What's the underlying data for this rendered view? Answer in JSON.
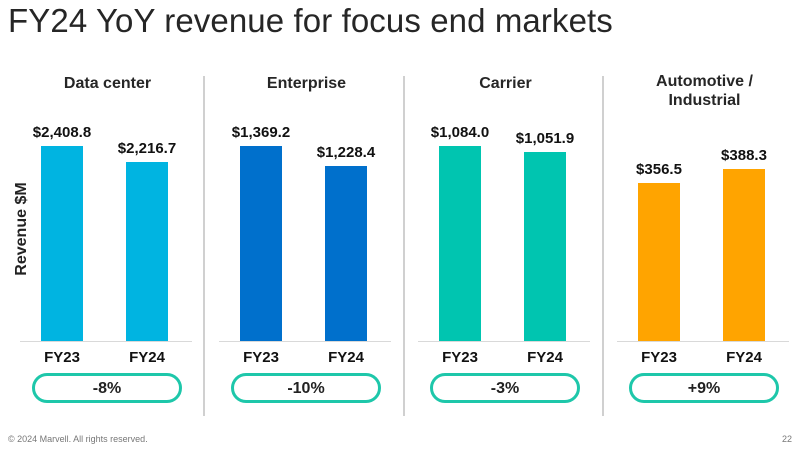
{
  "slide": {
    "title": "FY24 YoY revenue for focus end markets",
    "y_axis_label": "Revenue $M",
    "footer": "© 2024 Marvell. All rights reserved.",
    "page_number": "22"
  },
  "chart_data": {
    "type": "bar",
    "title": "FY24 YoY revenue for focus end markets",
    "ylabel": "Revenue $M",
    "categories": [
      "FY23",
      "FY24"
    ],
    "panels": [
      {
        "name": "Data center",
        "title_lines": [
          "Data center"
        ],
        "color": "#00b4e1",
        "values": [
          2408.8,
          2216.7
        ],
        "labels": [
          "$2,408.8",
          "$2,216.7"
        ],
        "change": "-8%"
      },
      {
        "name": "Enterprise",
        "title_lines": [
          "Enterprise"
        ],
        "color": "#0070cc",
        "values": [
          1369.2,
          1228.4
        ],
        "labels": [
          "$1,369.2",
          "$1,228.4"
        ],
        "change": "-10%"
      },
      {
        "name": "Carrier",
        "title_lines": [
          "Carrier"
        ],
        "color": "#00c5b0",
        "values": [
          1084.0,
          1051.9
        ],
        "labels": [
          "$1,084.0",
          "$1,051.9"
        ],
        "change": "-3%"
      },
      {
        "name": "Automotive / Industrial",
        "title_lines": [
          "Automotive /",
          "Industrial"
        ],
        "color": "#ffa400",
        "values": [
          356.5,
          388.3
        ],
        "labels": [
          "$356.5",
          "$388.3"
        ],
        "change": "+9%"
      }
    ],
    "change_badge_color": "#1ec7aa",
    "note": "Each panel uses an independent vertical scale"
  }
}
